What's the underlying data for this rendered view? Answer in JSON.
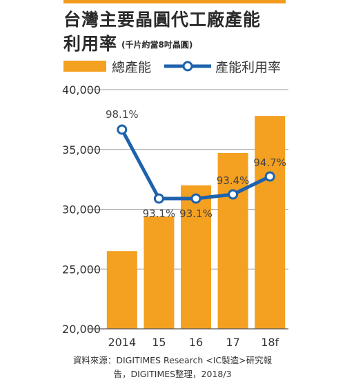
{
  "title": {
    "line1": "台灣主要晶圓代工廠產能",
    "line2": "利用率",
    "unit_note": "(千片約當8吋晶圓)"
  },
  "source": {
    "line1": "資料來源：DIGITIMES Research <IC製造>研究報",
    "line2": "告，DIGITIMES整理，2018/3"
  },
  "colors": {
    "bar": "#f4a020",
    "line": "#1e62ad",
    "accent": "#f19a1d"
  },
  "chart_data": {
    "type": "bar",
    "categories": [
      "2014",
      "15",
      "16",
      "17",
      "18f"
    ],
    "ylim": [
      20000,
      40000
    ],
    "yticks": [
      {
        "value": 20000,
        "label": "20,000"
      },
      {
        "value": 25000,
        "label": "25,000"
      },
      {
        "value": 30000,
        "label": "30,000"
      },
      {
        "value": 35000,
        "label": "35,000"
      },
      {
        "value": 40000,
        "label": "40,000"
      }
    ],
    "legend_position": "top",
    "series": [
      {
        "name": "總產能",
        "type": "bar",
        "values": [
          26500,
          29400,
          32000,
          34700,
          37800
        ]
      },
      {
        "name": "產能利用率",
        "type": "line",
        "values": [
          98.1,
          93.1,
          93.1,
          93.4,
          94.7
        ],
        "labels": [
          "98.1%",
          "93.1%",
          "93.1%",
          "93.4%",
          "94.7%"
        ],
        "ylim": [
          90,
          100
        ]
      }
    ]
  }
}
